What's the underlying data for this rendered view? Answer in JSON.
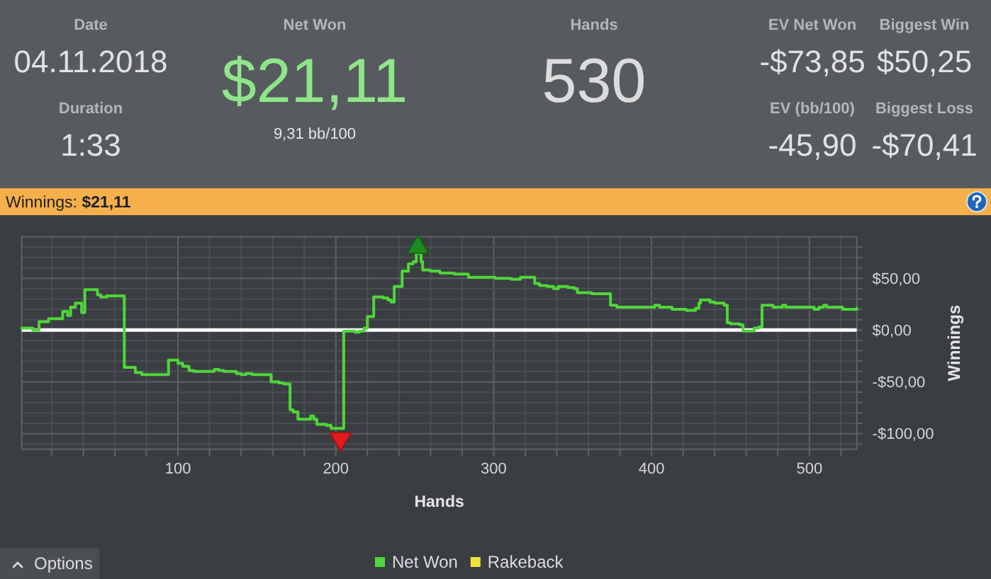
{
  "chart_data": [
    {
      "type": "other",
      "annotations": [
        "Date",
        "04.11.2018",
        "Duration",
        "1:33",
        "Net Won",
        "$21,11",
        "9,31 bb/100",
        "Hands",
        "530",
        "EV Net Won",
        "-$73,85",
        "EV (bb/100)",
        "-45,90",
        "Biggest Win",
        "$50,25",
        "Biggest Loss",
        "-$70,41"
      ]
    },
    {
      "type": "step",
      "title": "Winnings: $21,11",
      "xlabel": "Hands",
      "ylabel": "Winnings",
      "xlim": [
        1,
        530
      ],
      "xticks": [
        {
          "value": 20,
          "label": null
        },
        {
          "value": 40,
          "label": null
        },
        {
          "value": 60,
          "label": null
        },
        {
          "value": 80,
          "label": null
        },
        100,
        {
          "value": 120,
          "label": null
        },
        {
          "value": 140,
          "label": null
        },
        {
          "value": 160,
          "label": null
        },
        {
          "value": 180,
          "label": null
        },
        200,
        {
          "value": 220,
          "label": null
        },
        {
          "value": 240,
          "label": null
        },
        {
          "value": 260,
          "label": null
        },
        {
          "value": 280,
          "label": null
        },
        300,
        {
          "value": 320,
          "label": null
        },
        {
          "value": 340,
          "label": null
        },
        {
          "value": 360,
          "label": null
        },
        {
          "value": 380,
          "label": null
        },
        400,
        {
          "value": 420,
          "label": null
        },
        {
          "value": 440,
          "label": null
        },
        {
          "value": 460,
          "label": null
        },
        {
          "value": 480,
          "label": null
        },
        500,
        {
          "value": 520,
          "label": null
        }
      ],
      "ylim": [
        -115,
        90
      ],
      "yticks": [
        {
          "value": -110,
          "label": null
        },
        {
          "value": -100,
          "label": "-$100,00"
        },
        {
          "value": -90,
          "label": null
        },
        {
          "value": -80,
          "label": null
        },
        {
          "value": -70,
          "label": null
        },
        {
          "value": -60,
          "label": null
        },
        {
          "value": -50,
          "label": "-$50,00"
        },
        {
          "value": -40,
          "label": null
        },
        {
          "value": -30,
          "label": null
        },
        {
          "value": -20,
          "label": null
        },
        {
          "value": -10,
          "label": null
        },
        {
          "value": 0,
          "label": "$0,00"
        },
        {
          "value": 10,
          "label": null
        },
        {
          "value": 20,
          "label": null
        },
        {
          "value": 30,
          "label": null
        },
        {
          "value": 40,
          "label": null
        },
        {
          "value": 50,
          "label": "$50,00"
        },
        {
          "value": 60,
          "label": null
        },
        {
          "value": 70,
          "label": null
        },
        {
          "value": 80,
          "label": null
        }
      ],
      "grid": true,
      "legend": "bottom",
      "ref_lines": [
        {
          "axis": "y",
          "value": 0,
          "color": "#ffffff"
        }
      ],
      "series": [
        {
          "name": "Net Won",
          "color": "#4fd63a",
          "x": [
            1,
            8,
            12,
            18,
            27,
            30,
            32,
            35,
            39,
            41,
            49,
            51,
            55,
            66,
            73,
            77,
            94,
            100,
            103,
            107,
            110,
            123,
            126,
            129,
            137,
            140,
            143,
            147,
            159,
            164,
            167,
            171,
            173,
            176,
            184,
            186,
            188,
            194,
            197,
            205,
            212,
            215,
            218,
            220,
            224,
            230,
            233,
            235,
            237,
            242,
            246,
            249,
            251,
            254,
            255,
            260,
            266,
            275,
            284,
            301,
            311,
            317,
            326,
            329,
            334,
            338,
            341,
            347,
            351,
            353,
            362,
            374,
            378,
            402,
            405,
            413,
            422,
            425,
            428,
            430,
            431,
            437,
            440,
            446,
            448,
            450,
            456,
            458,
            465,
            468,
            470,
            477,
            483,
            485,
            503,
            506,
            509,
            511,
            521,
            530
          ],
          "values": [
            2,
            0,
            8,
            11,
            18,
            14,
            22,
            26,
            17,
            39,
            34,
            32,
            33,
            -36,
            -41,
            -43,
            -29,
            -32,
            -35,
            -39,
            -40,
            -38,
            -39,
            -40,
            -42,
            -43,
            -42,
            -43,
            -50,
            -51,
            -52,
            -77,
            -79,
            -86,
            -83,
            -86,
            -91,
            -92,
            -95,
            -1,
            -2,
            -1,
            2,
            13,
            32,
            31,
            29,
            27,
            42,
            57,
            64,
            66,
            74,
            66,
            58,
            57,
            55,
            54,
            51,
            50,
            49,
            51,
            45,
            43,
            42,
            40,
            42,
            41,
            40,
            36,
            35,
            24,
            22,
            24,
            22,
            20,
            19,
            19,
            21,
            26,
            29,
            27,
            26,
            24,
            7,
            6,
            5,
            -1,
            2,
            3,
            24,
            22,
            24,
            22,
            20,
            22,
            24,
            22,
            20,
            21
          ]
        },
        {
          "name": "Rakeback",
          "color": "#f2e23a"
        },
        {
          "type": "scatter",
          "marker": "triangle",
          "color": "#1f8a1f",
          "x": [
            252
          ],
          "values": [
            80
          ]
        },
        {
          "type": "scatter",
          "marker": "triangle-down",
          "color": "#e51b1b",
          "x": [
            203
          ],
          "values": [
            -105
          ]
        }
      ],
      "annotations": [
        "Options"
      ]
    }
  ]
}
